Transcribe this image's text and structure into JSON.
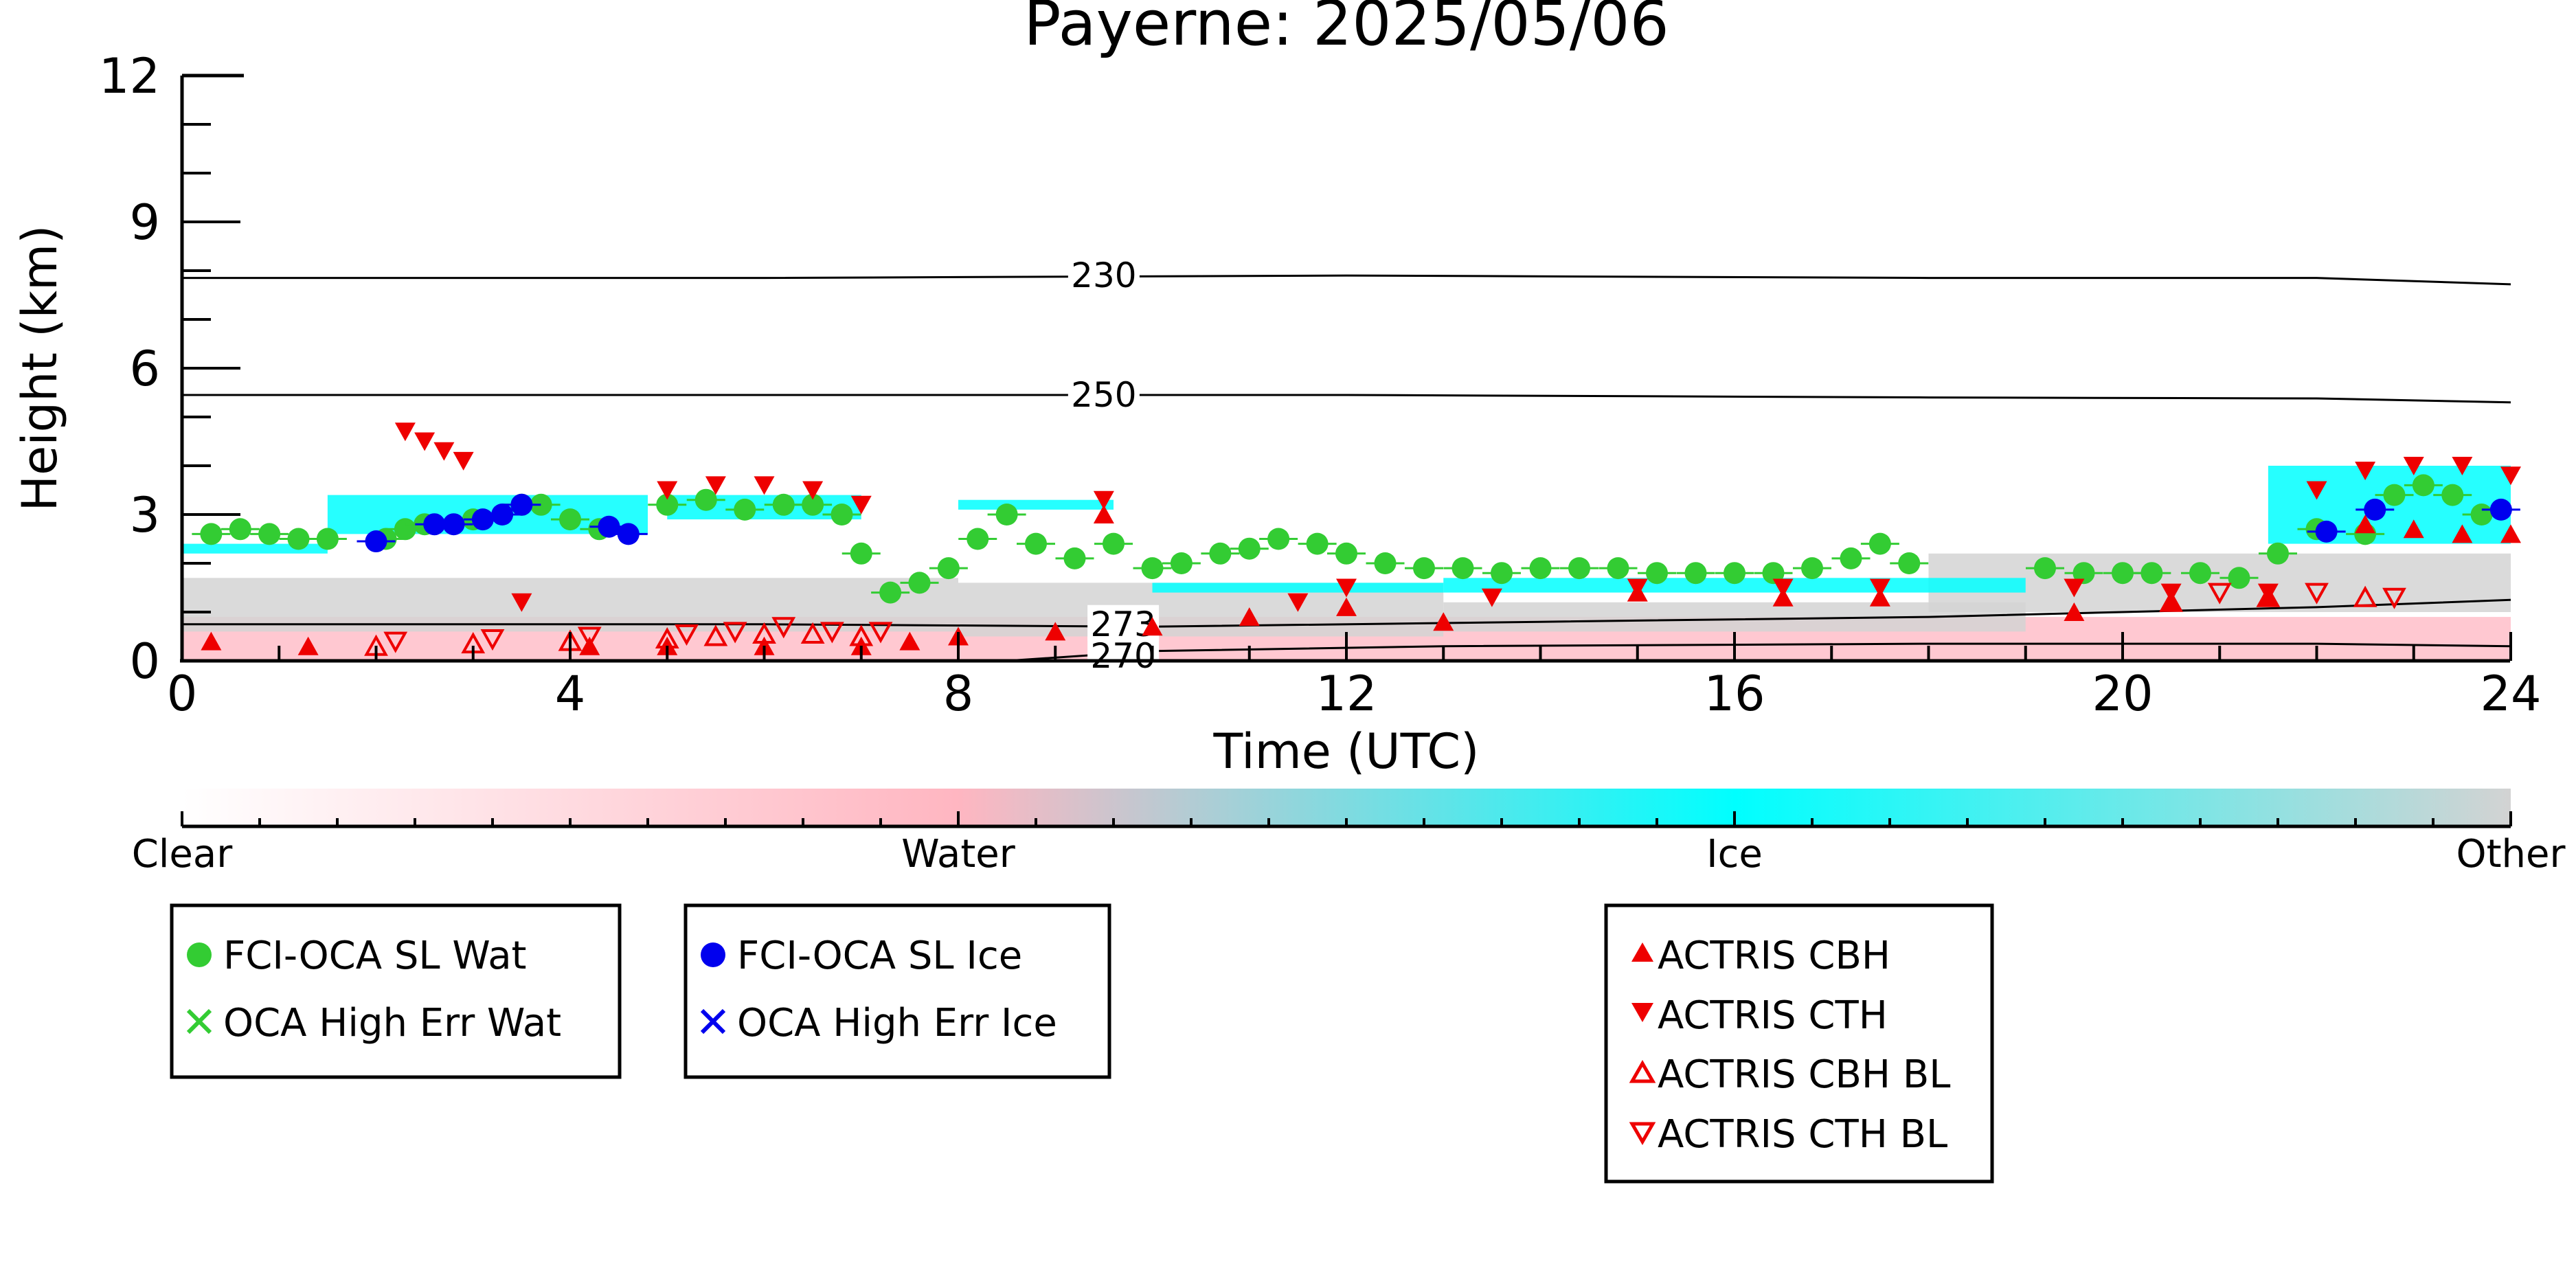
{
  "chart_data": {
    "type": "scatter",
    "title": "Payerne: 2025/05/06",
    "xlabel": "Time (UTC)",
    "ylabel": "Height (km)",
    "xlim": [
      0,
      24
    ],
    "ylim": [
      0,
      12
    ],
    "xticks": [
      "0",
      "4",
      "8",
      "12",
      "16",
      "20",
      "24"
    ],
    "yticks": [
      "0",
      "3",
      "6",
      "9",
      "12"
    ],
    "grid": false,
    "colorbar": {
      "labels": [
        "Clear",
        "Water",
        "Ice",
        "Other"
      ],
      "colors": [
        "#ffffff",
        "#ffb6c1",
        "#00ffff",
        "#d3d3d3"
      ]
    },
    "contours": [
      {
        "label": "230",
        "points": [
          [
            0,
            7.85
          ],
          [
            6,
            7.85
          ],
          [
            12,
            7.9
          ],
          [
            18,
            7.85
          ],
          [
            22,
            7.85
          ],
          [
            24,
            7.72
          ]
        ]
      },
      {
        "label": "250",
        "points": [
          [
            0,
            5.45
          ],
          [
            6,
            5.45
          ],
          [
            12,
            5.45
          ],
          [
            18,
            5.4
          ],
          [
            22,
            5.38
          ],
          [
            24,
            5.3
          ]
        ]
      },
      {
        "label": "273",
        "points": [
          [
            0,
            0.75
          ],
          [
            6,
            0.75
          ],
          [
            10,
            0.7
          ],
          [
            14,
            0.8
          ],
          [
            18,
            0.9
          ],
          [
            20,
            1.0
          ],
          [
            22,
            1.1
          ],
          [
            24,
            1.25
          ]
        ]
      },
      {
        "label": "270",
        "points": [
          [
            8.5,
            0
          ],
          [
            10,
            0.2
          ],
          [
            13,
            0.3
          ],
          [
            18,
            0.35
          ],
          [
            22,
            0.35
          ],
          [
            24,
            0.3
          ]
        ]
      }
    ],
    "background_cells": {
      "water": [
        [
          0,
          24,
          0,
          0.9
        ]
      ],
      "ice": [
        [
          0,
          1.5,
          2.2,
          2.4
        ],
        [
          1.5,
          4.8,
          2.6,
          3.4
        ],
        [
          5,
          7,
          2.9,
          3.4
        ],
        [
          8,
          9.6,
          3.1,
          3.3
        ],
        [
          10,
          13,
          1.4,
          1.6
        ],
        [
          13,
          19,
          1.4,
          1.7
        ],
        [
          21.5,
          24,
          2.4,
          4.0
        ]
      ],
      "other": [
        [
          0,
          8,
          0.6,
          1.7
        ],
        [
          8,
          13,
          0.5,
          1.6
        ],
        [
          13,
          19,
          0.6,
          1.2
        ],
        [
          18,
          24,
          1.0,
          2.2
        ]
      ]
    },
    "series": [
      {
        "name": "FCI-OCA SL Wat",
        "color": "#33cc33",
        "x": [
          0.3,
          0.6,
          0.9,
          1.2,
          1.5,
          2.1,
          2.3,
          2.5,
          3.0,
          3.5,
          3.7,
          4.0,
          4.3,
          5.0,
          5.4,
          5.8,
          6.2,
          6.5,
          6.8,
          7.0,
          7.3,
          7.6,
          7.9,
          8.2,
          8.5,
          8.8,
          9.2,
          9.6,
          10.0,
          10.3,
          10.7,
          11.0,
          11.3,
          11.7,
          12.0,
          12.4,
          12.8,
          13.2,
          13.6,
          14.0,
          14.4,
          14.8,
          15.2,
          15.6,
          16.0,
          16.4,
          16.8,
          17.2,
          17.5,
          17.8,
          19.2,
          19.6,
          20.0,
          20.3,
          20.8,
          21.2,
          21.6,
          22.0,
          22.5,
          22.8,
          23.1,
          23.4,
          23.7
        ],
        "y": [
          2.6,
          2.7,
          2.6,
          2.5,
          2.5,
          2.5,
          2.7,
          2.8,
          2.9,
          3.2,
          3.2,
          2.9,
          2.7,
          3.2,
          3.3,
          3.1,
          3.2,
          3.2,
          3.0,
          2.2,
          1.4,
          1.6,
          1.9,
          2.5,
          3.0,
          2.4,
          2.1,
          2.4,
          1.9,
          2.0,
          2.2,
          2.3,
          2.5,
          2.4,
          2.2,
          2.0,
          1.9,
          1.9,
          1.8,
          1.9,
          1.9,
          1.9,
          1.8,
          1.8,
          1.8,
          1.8,
          1.9,
          2.1,
          2.4,
          2.0,
          1.9,
          1.8,
          1.8,
          1.8,
          1.8,
          1.7,
          2.2,
          2.7,
          2.6,
          3.4,
          3.6,
          3.4,
          3.0
        ]
      },
      {
        "name": "OCA High Err Wat",
        "color": "#33cc33",
        "x": [],
        "y": []
      },
      {
        "name": "FCI-OCA SL Ice",
        "color": "#0000ee",
        "x": [
          2.0,
          2.6,
          2.8,
          3.1,
          3.3,
          3.5,
          4.4,
          4.6,
          22.1,
          22.6,
          23.9
        ],
        "y": [
          2.45,
          2.8,
          2.8,
          2.9,
          3.0,
          3.2,
          2.75,
          2.6,
          2.65,
          3.1,
          3.1
        ]
      },
      {
        "name": "OCA High Err Ice",
        "color": "#0000ee",
        "x": [],
        "y": []
      },
      {
        "name": "ACTRIS CBH",
        "color": "#ee0000",
        "x": [
          0.3,
          1.3,
          4.2,
          5.0,
          6.0,
          7.0,
          7.5,
          8.0,
          9.0,
          9.5,
          10.0,
          11.0,
          12.0,
          13.0,
          15.0,
          16.5,
          17.5,
          19.5,
          20.5,
          21.5,
          22.5,
          23.0,
          23.5,
          24.0
        ],
        "y": [
          0.4,
          0.3,
          0.3,
          0.3,
          0.3,
          0.3,
          0.4,
          0.5,
          0.6,
          3.0,
          0.7,
          0.9,
          1.1,
          0.8,
          1.4,
          1.3,
          1.3,
          1.0,
          1.2,
          1.3,
          2.8,
          2.7,
          2.6,
          2.6
        ]
      },
      {
        "name": "ACTRIS CTH",
        "color": "#ee0000",
        "x": [
          2.3,
          2.5,
          2.7,
          2.9,
          5.0,
          5.5,
          6.0,
          6.5,
          7.0,
          3.5,
          9.5,
          11.5,
          12.0,
          13.5,
          15.0,
          16.5,
          17.5,
          19.5,
          20.5,
          21.5,
          22.0,
          22.5,
          23.0,
          23.5,
          24.0
        ],
        "y": [
          4.7,
          4.5,
          4.3,
          4.1,
          3.5,
          3.6,
          3.6,
          3.5,
          3.2,
          1.2,
          3.3,
          1.2,
          1.5,
          1.3,
          1.5,
          1.5,
          1.5,
          1.5,
          1.4,
          1.4,
          3.5,
          3.9,
          4.0,
          4.0,
          3.8
        ]
      },
      {
        "name": "ACTRIS CBH BL",
        "color": "#ee0000",
        "x": [
          2.0,
          3.0,
          4.0,
          5.0,
          5.5,
          6.0,
          6.5,
          7.0,
          20.5,
          21.5,
          22.5
        ],
        "y": [
          0.3,
          0.35,
          0.4,
          0.45,
          0.5,
          0.55,
          0.55,
          0.5,
          1.2,
          1.3,
          1.3
        ]
      },
      {
        "name": "ACTRIS CTH BL",
        "color": "#ee0000",
        "x": [
          2.2,
          3.2,
          4.2,
          5.2,
          5.7,
          6.2,
          6.7,
          7.2,
          21.0,
          22.0,
          22.8
        ],
        "y": [
          0.4,
          0.45,
          0.5,
          0.55,
          0.6,
          0.7,
          0.6,
          0.6,
          1.4,
          1.4,
          1.3
        ]
      }
    ]
  }
}
